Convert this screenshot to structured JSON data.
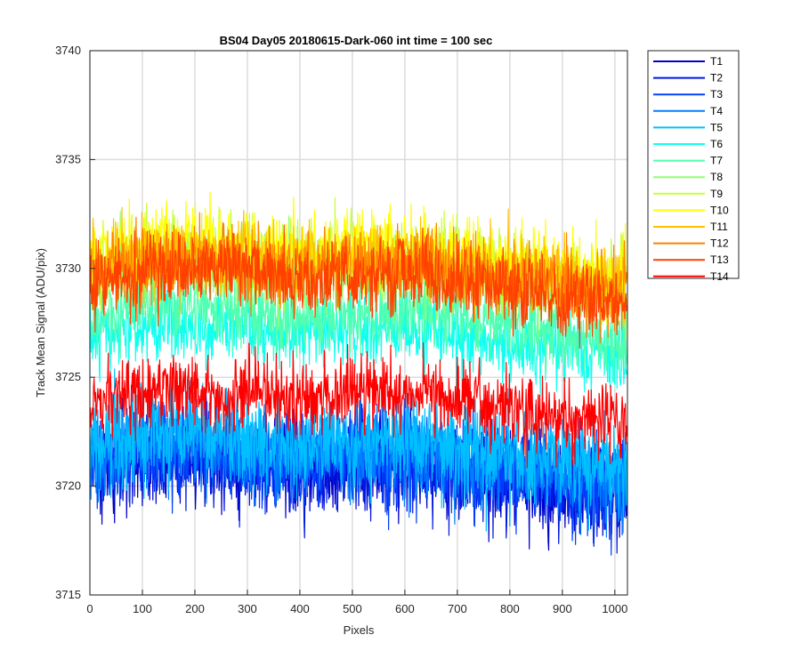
{
  "chart_data": {
    "type": "line",
    "title": "BS04 Day05 20180615-Dark-060 int time = 100 sec",
    "xlabel": "Pixels",
    "ylabel": "Track Mean Signal (ADU/pix)",
    "xlim": [
      0,
      1024
    ],
    "ylim": [
      3715,
      3740
    ],
    "xticks": [
      0,
      100,
      200,
      300,
      400,
      500,
      600,
      700,
      800,
      900,
      1000
    ],
    "yticks": [
      3715,
      3720,
      3725,
      3730,
      3735,
      3740
    ],
    "grid": true,
    "legend_position": "outside-top-right",
    "n_points": 1024,
    "series": [
      {
        "name": "T1",
        "color": "#0000c8",
        "values": [
          3720.8,
          3721.2,
          3721.5,
          3721.0,
          3720.6,
          3720.9,
          3721.3,
          3720.7,
          3720.1,
          3719.8,
          3719.6
        ]
      },
      {
        "name": "T2",
        "color": "#0018e0",
        "values": [
          3720.9,
          3721.3,
          3721.4,
          3721.2,
          3720.8,
          3721.1,
          3721.0,
          3720.8,
          3720.3,
          3720.0,
          3719.8
        ]
      },
      {
        "name": "T3",
        "color": "#0040ff",
        "values": [
          3721.2,
          3721.6,
          3721.7,
          3721.4,
          3721.1,
          3721.4,
          3721.5,
          3721.0,
          3720.6,
          3720.3,
          3720.0
        ]
      },
      {
        "name": "T4",
        "color": "#0080ff",
        "values": [
          3721.5,
          3721.8,
          3722.0,
          3721.7,
          3721.4,
          3721.6,
          3721.8,
          3721.3,
          3720.9,
          3720.7,
          3720.4
        ]
      },
      {
        "name": "T5",
        "color": "#00c0ff",
        "values": [
          3722.0,
          3722.3,
          3722.5,
          3722.2,
          3721.9,
          3722.1,
          3722.2,
          3721.8,
          3721.4,
          3721.2,
          3720.9
        ]
      },
      {
        "name": "T6",
        "color": "#10ffef",
        "values": [
          3727.0,
          3727.3,
          3727.5,
          3727.3,
          3727.0,
          3727.2,
          3727.3,
          3727.0,
          3726.6,
          3726.3,
          3726.0
        ]
      },
      {
        "name": "T7",
        "color": "#50ffaf",
        "values": [
          3727.8,
          3728.2,
          3728.3,
          3728.1,
          3727.8,
          3728.0,
          3728.1,
          3727.8,
          3727.4,
          3727.1,
          3726.8
        ]
      },
      {
        "name": "T8",
        "color": "#90ff70",
        "values": [
          3729.6,
          3730.0,
          3730.2,
          3730.0,
          3729.7,
          3729.9,
          3730.0,
          3729.7,
          3729.3,
          3729.0,
          3728.6
        ]
      },
      {
        "name": "T9",
        "color": "#c8ff38",
        "values": [
          3730.2,
          3730.6,
          3730.8,
          3730.6,
          3730.3,
          3730.5,
          3730.6,
          3730.3,
          3729.9,
          3729.6,
          3729.2
        ]
      },
      {
        "name": "T10",
        "color": "#ffff00",
        "values": [
          3730.6,
          3731.0,
          3731.2,
          3731.0,
          3730.7,
          3730.9,
          3731.0,
          3730.7,
          3730.3,
          3730.0,
          3729.6
        ]
      },
      {
        "name": "T11",
        "color": "#ffc000",
        "values": [
          3730.1,
          3730.5,
          3730.7,
          3730.5,
          3730.2,
          3730.4,
          3730.5,
          3730.2,
          3729.8,
          3729.5,
          3729.1
        ]
      },
      {
        "name": "T12",
        "color": "#ff8000",
        "values": [
          3729.8,
          3730.2,
          3730.4,
          3730.2,
          3729.9,
          3730.1,
          3730.2,
          3729.9,
          3729.5,
          3729.2,
          3728.8
        ]
      },
      {
        "name": "T13",
        "color": "#ff4000",
        "values": [
          3729.4,
          3729.8,
          3730.0,
          3729.8,
          3729.5,
          3729.7,
          3729.8,
          3729.5,
          3729.1,
          3728.8,
          3728.4
        ]
      },
      {
        "name": "T14",
        "color": "#ff0000",
        "values": [
          3724.0,
          3724.3,
          3724.5,
          3724.3,
          3724.0,
          3724.2,
          3724.3,
          3724.0,
          3723.6,
          3723.3,
          3722.9
        ]
      }
    ],
    "series_x": [
      0,
      100,
      200,
      300,
      400,
      500,
      600,
      700,
      800,
      900,
      1000
    ],
    "noise_amplitude": [
      2.0,
      2.0,
      2.0,
      2.0,
      2.0,
      1.6,
      1.6,
      1.6,
      1.6,
      1.6,
      1.6,
      1.6,
      1.6,
      1.6
    ],
    "draw_order": [
      0,
      1,
      2,
      3,
      4,
      5,
      6,
      7,
      8,
      9,
      10,
      11,
      12,
      13
    ]
  }
}
